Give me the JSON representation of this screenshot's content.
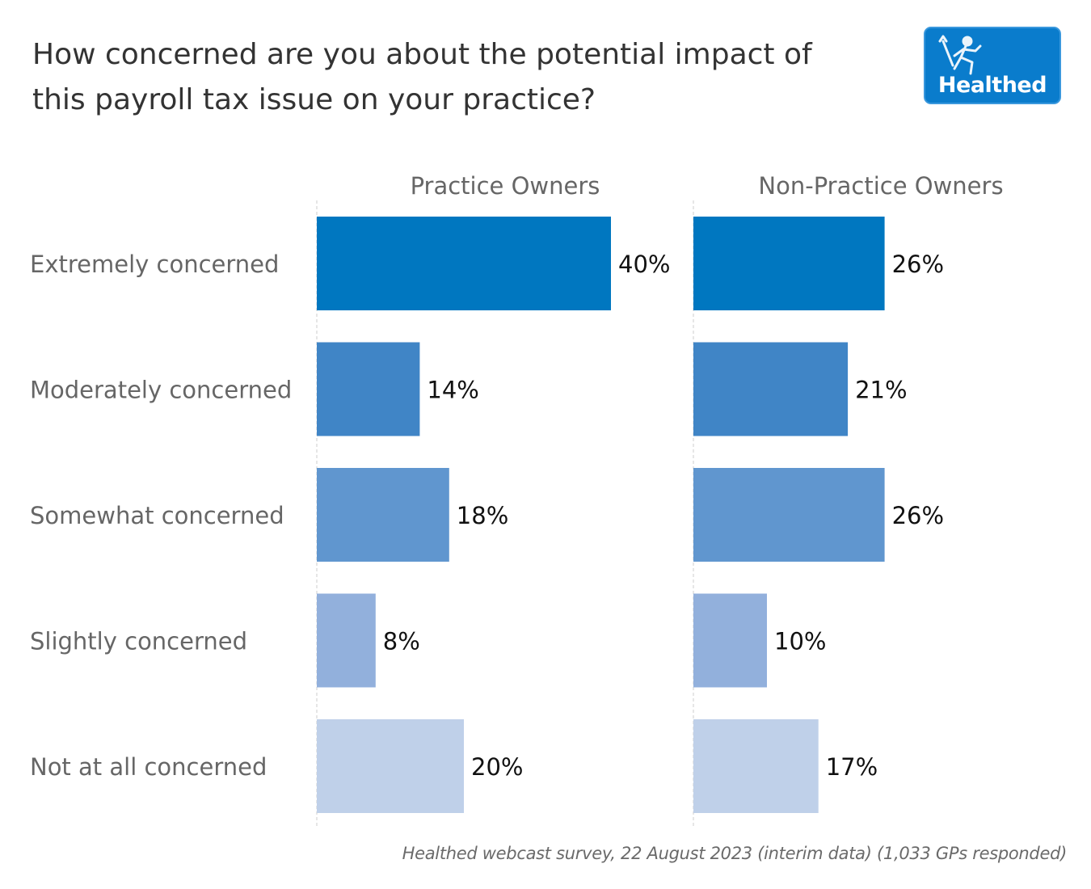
{
  "header": {
    "title_line1": "How concerned are you about the potential impact of",
    "title_line2": "this payroll tax issue on your practice?"
  },
  "logo": {
    "text": "Healthed",
    "icon": "hermes-runner-icon",
    "bg_color": "#0a7ccc"
  },
  "footer": {
    "source": "Healthed webcast survey, 22 August 2023 (interim data) (1,033 GPs responded)"
  },
  "chart_data": {
    "type": "bar",
    "orientation": "horizontal",
    "title": "How concerned are you about the potential impact of this payroll tax issue on your practice?",
    "categories": [
      "Extremely concerned",
      "Moderately concerned",
      "Somewhat concerned",
      "Slightly concerned",
      "Not at all concerned"
    ],
    "category_colors": [
      "#0077c0",
      "#4085c6",
      "#6096cf",
      "#92b0dc",
      "#bfd0e9"
    ],
    "panels": [
      {
        "name": "Practice Owners",
        "values": [
          40,
          14,
          18,
          8,
          20
        ],
        "labels": [
          "40%",
          "14%",
          "18%",
          "8%",
          "20%"
        ]
      },
      {
        "name": "Non-Practice Owners",
        "values": [
          26,
          21,
          26,
          10,
          17
        ],
        "labels": [
          "26%",
          "21%",
          "26%",
          "10%",
          "17%"
        ]
      }
    ],
    "unit": "%",
    "xlim": [
      0,
      40
    ],
    "grid": false,
    "legend": "none",
    "source": "Healthed webcast survey, 22 August 2023 (interim data) (1,033 GPs responded)"
  }
}
